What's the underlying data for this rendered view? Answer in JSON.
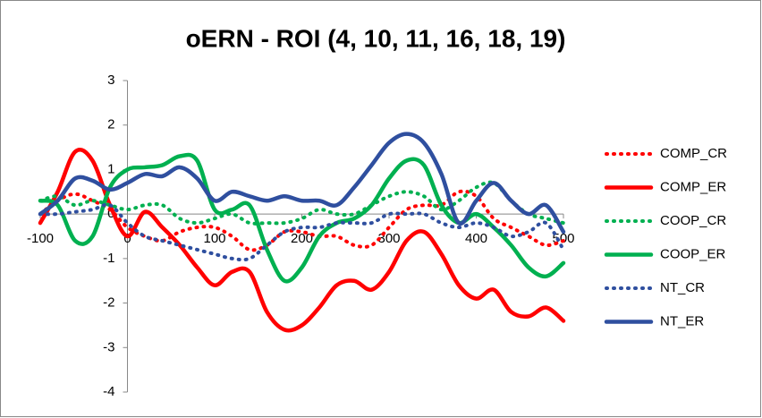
{
  "chart_data": {
    "type": "line",
    "title": "oERN - ROI (4, 10, 11, 16, 18, 19)",
    "x": [
      -100,
      -80,
      -60,
      -40,
      -20,
      0,
      20,
      40,
      60,
      80,
      100,
      120,
      140,
      160,
      180,
      200,
      220,
      240,
      260,
      280,
      300,
      320,
      340,
      360,
      380,
      400,
      420,
      440,
      460,
      480,
      500
    ],
    "xlim": [
      -100,
      500
    ],
    "xticks": [
      -100,
      0,
      100,
      200,
      300,
      400,
      500
    ],
    "ylim": [
      -4,
      3
    ],
    "yticks": [
      3,
      2,
      1,
      0,
      -1,
      -2,
      -3,
      -4
    ],
    "series": [
      {
        "name": "COMP_CR",
        "color": "#ff0000",
        "style": "dotted",
        "values": [
          0.0,
          0.3,
          0.45,
          0.3,
          0.1,
          -0.3,
          -0.5,
          -0.6,
          -0.4,
          -0.3,
          -0.3,
          -0.5,
          -0.8,
          -0.7,
          -0.4,
          -0.4,
          -0.5,
          -0.5,
          -0.7,
          -0.7,
          -0.3,
          0.1,
          0.2,
          0.2,
          0.5,
          0.4,
          -0.1,
          -0.3,
          -0.5,
          -0.7,
          -0.6
        ]
      },
      {
        "name": "COMP_ER",
        "color": "#ff0000",
        "style": "solid",
        "values": [
          -0.2,
          0.5,
          1.4,
          1.2,
          0.2,
          -0.5,
          0.05,
          -0.3,
          -0.7,
          -1.2,
          -1.6,
          -1.3,
          -1.3,
          -2.2,
          -2.6,
          -2.5,
          -2.1,
          -1.6,
          -1.5,
          -1.7,
          -1.3,
          -0.6,
          -0.4,
          -0.9,
          -1.6,
          -1.9,
          -1.7,
          -2.2,
          -2.3,
          -2.1,
          -2.4
        ]
      },
      {
        "name": "COOP_CR",
        "color": "#00b050",
        "style": "dotted",
        "values": [
          0.3,
          0.4,
          0.2,
          0.3,
          0.2,
          0.1,
          0.2,
          0.2,
          -0.1,
          -0.2,
          -0.1,
          0.0,
          -0.2,
          -0.2,
          -0.2,
          -0.1,
          0.1,
          0.0,
          0.0,
          0.2,
          0.4,
          0.5,
          0.4,
          0.1,
          0.3,
          0.6,
          0.7,
          0.3,
          0.0,
          -0.1,
          -0.2
        ]
      },
      {
        "name": "COOP_ER",
        "color": "#00b050",
        "style": "solid",
        "values": [
          0.3,
          0.2,
          -0.6,
          -0.5,
          0.6,
          1.0,
          1.05,
          1.1,
          1.3,
          1.2,
          0.1,
          0.1,
          0.2,
          -0.8,
          -1.5,
          -1.2,
          -0.5,
          -0.2,
          -0.1,
          0.2,
          0.8,
          1.2,
          1.1,
          0.2,
          -0.2,
          0.0,
          -0.3,
          -0.7,
          -1.2,
          -1.4,
          -1.1
        ]
      },
      {
        "name": "NT_CR",
        "color": "#2f4f9f",
        "style": "dotted",
        "values": [
          0.0,
          0.0,
          0.05,
          0.1,
          0.2,
          -0.2,
          -0.5,
          -0.6,
          -0.7,
          -0.8,
          -0.9,
          -1.0,
          -1.0,
          -0.7,
          -0.4,
          -0.3,
          -0.3,
          -0.2,
          -0.2,
          -0.2,
          0.0,
          0.0,
          0.0,
          -0.2,
          -0.3,
          -0.2,
          -0.3,
          -0.5,
          -0.4,
          -0.2,
          -0.8
        ]
      },
      {
        "name": "NT_ER",
        "color": "#2f4f9f",
        "style": "solid",
        "values": [
          0.0,
          0.3,
          0.8,
          0.75,
          0.55,
          0.7,
          0.9,
          0.85,
          1.05,
          0.8,
          0.3,
          0.5,
          0.4,
          0.3,
          0.4,
          0.3,
          0.3,
          0.2,
          0.6,
          1.1,
          1.6,
          1.8,
          1.6,
          0.9,
          -0.2,
          0.3,
          0.7,
          0.3,
          0.0,
          0.2,
          -0.4
        ]
      }
    ]
  }
}
